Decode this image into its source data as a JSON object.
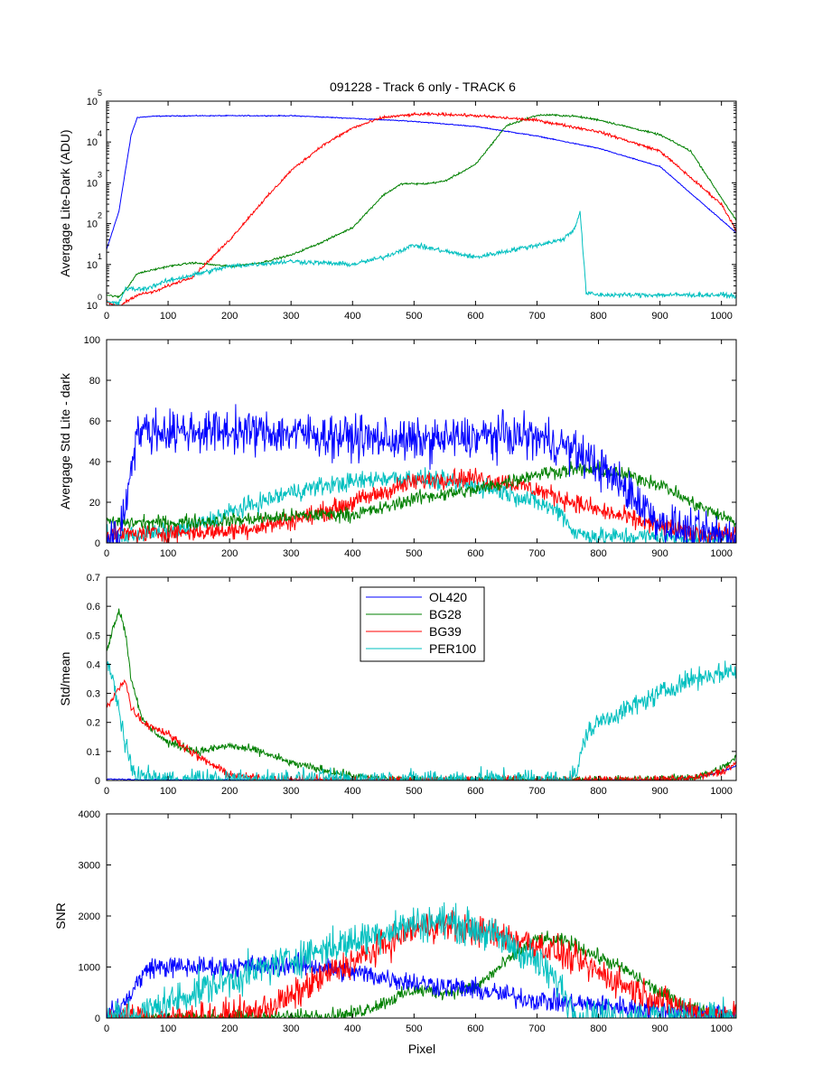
{
  "figure": {
    "title": "091228 - Track 6 only - TRACK 6",
    "xlabel": "Pixel"
  },
  "legend": {
    "entries": [
      {
        "name": "OL420",
        "color": "#0000ff"
      },
      {
        "name": "BG28",
        "color": "#008000"
      },
      {
        "name": "BG39",
        "color": "#ff0000"
      },
      {
        "name": "PER100",
        "color": "#00bfbf"
      }
    ]
  },
  "chart_data": [
    {
      "id": "mean",
      "type": "line",
      "title": "091228 - Track 6 only - TRACK 6",
      "ylabel": "Avergage Lite-Dark (ADU)",
      "yscale": "log",
      "xlim": [
        0,
        1024
      ],
      "ylim": [
        1,
        100000
      ],
      "xticks": [
        0,
        100,
        200,
        300,
        400,
        500,
        600,
        700,
        800,
        900,
        1000
      ],
      "yticks": [
        {
          "base": "10",
          "exp": "0"
        },
        {
          "base": "10",
          "exp": "1"
        },
        {
          "base": "10",
          "exp": "2"
        },
        {
          "base": "10",
          "exp": "3"
        },
        {
          "base": "10",
          "exp": "4"
        },
        {
          "base": "10",
          "exp": "5"
        }
      ],
      "series": [
        {
          "name": "OL420",
          "color": "#0000ff",
          "noise": 0.01,
          "x": [
            0,
            20,
            40,
            50,
            80,
            150,
            300,
            400,
            500,
            600,
            700,
            800,
            900,
            1024
          ],
          "y": [
            23,
            200,
            15000,
            40000,
            43000,
            44000,
            44000,
            38000,
            32000,
            24000,
            14000,
            7000,
            2500,
            60
          ]
        },
        {
          "name": "BG28",
          "color": "#008000",
          "noise": 0.02,
          "x": [
            0,
            20,
            30,
            50,
            100,
            140,
            200,
            250,
            300,
            350,
            400,
            450,
            480,
            520,
            550,
            600,
            650,
            700,
            720,
            760,
            800,
            900,
            950,
            1024
          ],
          "y": [
            1.8,
            1.6,
            2.3,
            6,
            9,
            11,
            9,
            11,
            17,
            35,
            80,
            500,
            950,
            950,
            1100,
            2800,
            25000,
            45000,
            46000,
            43000,
            35000,
            15000,
            6000,
            120
          ]
        },
        {
          "name": "BG39",
          "color": "#ff0000",
          "noise": 0.03,
          "x": [
            0,
            20,
            30,
            50,
            80,
            100,
            140,
            200,
            250,
            300,
            350,
            400,
            450,
            500,
            530,
            560,
            600,
            700,
            800,
            900,
            1000,
            1024
          ],
          "y": [
            1.2,
            0.9,
            1.2,
            1.8,
            2.2,
            3,
            5,
            40,
            300,
            2000,
            8000,
            22000,
            40000,
            47000,
            48000,
            47000,
            44000,
            34000,
            18000,
            6000,
            300,
            70
          ]
        },
        {
          "name": "PER100",
          "color": "#00bfbf",
          "noise": 0.05,
          "x": [
            0,
            20,
            30,
            50,
            60,
            100,
            200,
            300,
            400,
            450,
            500,
            600,
            700,
            740,
            760,
            770,
            780,
            800,
            900,
            1000,
            1024
          ],
          "y": [
            1.2,
            1.1,
            2.5,
            2.5,
            2.5,
            4,
            9,
            12,
            10,
            15,
            30,
            15,
            30,
            40,
            70,
            200,
            2,
            1.8,
            1.8,
            1.8,
            1.7
          ]
        }
      ]
    },
    {
      "id": "std",
      "type": "line",
      "ylabel": "Avergage Std Lite - dark",
      "xlim": [
        0,
        1024
      ],
      "ylim": [
        0,
        100
      ],
      "xticks": [
        0,
        100,
        200,
        300,
        400,
        500,
        600,
        700,
        800,
        900,
        1000
      ],
      "yticks": [
        0,
        20,
        40,
        60,
        80,
        100
      ],
      "series": [
        {
          "name": "PER100",
          "color": "#00bfbf",
          "noise": 4,
          "x": [
            0,
            100,
            150,
            200,
            250,
            300,
            350,
            400,
            450,
            500,
            550,
            600,
            650,
            700,
            740,
            760,
            800,
            900,
            1024
          ],
          "y": [
            3,
            5,
            9,
            15,
            20,
            25,
            28,
            30,
            32,
            32,
            30,
            28,
            25,
            20,
            15,
            5,
            3,
            3,
            2
          ]
        },
        {
          "name": "BG39",
          "color": "#ff0000",
          "noise": 4,
          "x": [
            0,
            100,
            200,
            250,
            300,
            350,
            400,
            450,
            500,
            550,
            600,
            650,
            700,
            750,
            800,
            850,
            900,
            950,
            1024
          ],
          "y": [
            4,
            5,
            6,
            8,
            11,
            15,
            20,
            25,
            30,
            32,
            32,
            30,
            26,
            21,
            16,
            12,
            8,
            5,
            4
          ]
        },
        {
          "name": "BG28",
          "color": "#008000",
          "noise": 3,
          "x": [
            0,
            100,
            200,
            300,
            350,
            400,
            450,
            500,
            550,
            600,
            650,
            700,
            750,
            800,
            850,
            900,
            950,
            1024
          ],
          "y": [
            10,
            10,
            11,
            13,
            14,
            14,
            17,
            22,
            24,
            26,
            30,
            34,
            36,
            36,
            33,
            29,
            20,
            10
          ]
        },
        {
          "name": "OL420",
          "color": "#0000ff",
          "noise": 9,
          "x": [
            0,
            20,
            30,
            40,
            50,
            100,
            200,
            300,
            400,
            500,
            600,
            650,
            700,
            750,
            800,
            850,
            900,
            950,
            1024
          ],
          "y": [
            2,
            4,
            15,
            40,
            55,
            55,
            55,
            54,
            52,
            50,
            52,
            53,
            52,
            47,
            38,
            25,
            10,
            5,
            3
          ]
        }
      ]
    },
    {
      "id": "ratio",
      "type": "line",
      "ylabel": "Std/mean",
      "xlim": [
        0,
        1024
      ],
      "ylim": [
        0,
        0.7
      ],
      "xticks": [
        0,
        100,
        200,
        300,
        400,
        500,
        600,
        700,
        800,
        900,
        1000
      ],
      "yticks": [
        0,
        0.1,
        0.2,
        0.3,
        0.4,
        0.5,
        0.6,
        0.7
      ],
      "series": [
        {
          "name": "OL420",
          "color": "#0000ff",
          "noise": 0.002,
          "x": [
            0,
            50,
            100,
            900,
            960,
            1000,
            1024
          ],
          "y": [
            0.005,
            0.003,
            0.002,
            0.002,
            0.01,
            0.03,
            0.05
          ]
        },
        {
          "name": "BG28",
          "color": "#008000",
          "noise": 0.012,
          "x": [
            0,
            10,
            20,
            30,
            40,
            60,
            100,
            150,
            200,
            250,
            300,
            400,
            450,
            500,
            900,
            960,
            1000,
            1024
          ],
          "y": [
            0.45,
            0.52,
            0.59,
            0.52,
            0.35,
            0.2,
            0.13,
            0.1,
            0.12,
            0.1,
            0.06,
            0.015,
            0.004,
            0.002,
            0.003,
            0.012,
            0.04,
            0.08
          ]
        },
        {
          "name": "BG39",
          "color": "#ff0000",
          "noise": 0.012,
          "x": [
            0,
            10,
            20,
            30,
            40,
            60,
            100,
            150,
            200,
            250,
            300,
            900,
            960,
            1000,
            1024
          ],
          "y": [
            0.25,
            0.28,
            0.32,
            0.35,
            0.25,
            0.2,
            0.16,
            0.08,
            0.02,
            0.005,
            0.002,
            0.002,
            0.01,
            0.03,
            0.06
          ]
        },
        {
          "name": "PER100",
          "color": "#00bfbf",
          "noise": 0.03,
          "x": [
            0,
            10,
            20,
            30,
            40,
            50,
            60,
            100,
            750,
            765,
            780,
            800,
            850,
            900,
            950,
            1000,
            1024
          ],
          "y": [
            0.4,
            0.35,
            0.25,
            0.12,
            0.05,
            0.02,
            0.01,
            0.003,
            0.003,
            0.03,
            0.16,
            0.2,
            0.25,
            0.3,
            0.35,
            0.37,
            0.38
          ]
        }
      ]
    },
    {
      "id": "snr",
      "type": "line",
      "ylabel": "SNR",
      "xlabel": "Pixel",
      "xlim": [
        0,
        1024
      ],
      "ylim": [
        0,
        4000
      ],
      "xticks": [
        0,
        100,
        200,
        300,
        400,
        500,
        600,
        700,
        800,
        900,
        1000
      ],
      "yticks": [
        0,
        1000,
        2000,
        3000,
        4000
      ],
      "series": [
        {
          "name": "BG28",
          "color": "#008000",
          "noise": 120,
          "x": [
            0,
            300,
            400,
            450,
            500,
            550,
            600,
            650,
            700,
            750,
            800,
            850,
            900,
            950,
            1024
          ],
          "y": [
            0,
            20,
            80,
            300,
            550,
            500,
            600,
            1100,
            1550,
            1500,
            1200,
            900,
            500,
            200,
            10
          ]
        },
        {
          "name": "OL420",
          "color": "#0000ff",
          "noise": 180,
          "x": [
            0,
            30,
            50,
            70,
            100,
            200,
            300,
            350,
            400,
            450,
            500,
            600,
            700,
            800,
            900,
            1000,
            1024
          ],
          "y": [
            0,
            300,
            700,
            1000,
            1000,
            1000,
            1050,
            1000,
            900,
            800,
            700,
            550,
            350,
            250,
            150,
            50,
            10
          ]
        },
        {
          "name": "BG39",
          "color": "#ff0000",
          "noise": 260,
          "x": [
            0,
            150,
            200,
            250,
            300,
            350,
            400,
            450,
            500,
            550,
            600,
            650,
            700,
            750,
            800,
            850,
            900,
            950,
            1024
          ],
          "y": [
            0,
            0,
            20,
            150,
            400,
            800,
            1100,
            1400,
            1750,
            1850,
            1700,
            1600,
            1450,
            1200,
            900,
            600,
            350,
            150,
            10
          ]
        },
        {
          "name": "PER100",
          "color": "#00bfbf",
          "noise": 300,
          "x": [
            0,
            50,
            100,
            150,
            200,
            250,
            300,
            350,
            400,
            450,
            500,
            550,
            600,
            650,
            700,
            740,
            760,
            780,
            1024
          ],
          "y": [
            0,
            50,
            300,
            550,
            750,
            950,
            1150,
            1350,
            1500,
            1700,
            1850,
            1900,
            1750,
            1500,
            1100,
            600,
            100,
            10,
            0
          ]
        }
      ]
    }
  ]
}
